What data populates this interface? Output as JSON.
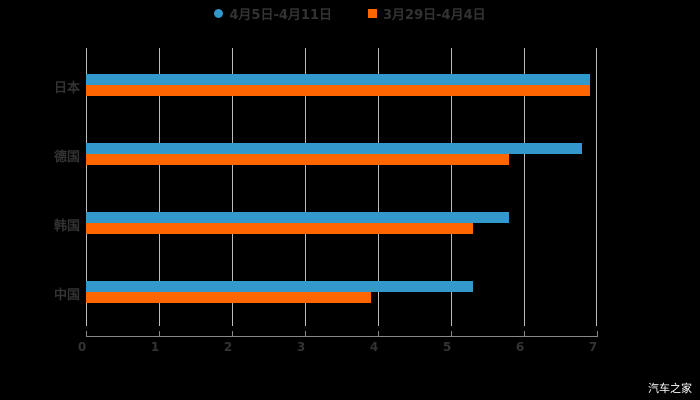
{
  "chart_data": {
    "type": "bar",
    "orientation": "horizontal",
    "title": "",
    "categories": [
      "日本",
      "德国",
      "韩国",
      "中国"
    ],
    "series": [
      {
        "name": "4月5日-4月11日",
        "color": "#3399cc",
        "values": [
          6.9,
          6.8,
          5.8,
          5.3
        ]
      },
      {
        "name": "3月29日-4月4日",
        "color": "#ff6600",
        "values": [
          6.9,
          5.8,
          5.3,
          3.9
        ]
      }
    ],
    "xlabel": "",
    "ylabel": "",
    "xlim": [
      0,
      7
    ],
    "x_ticks": [
      "0",
      "1",
      "2",
      "3",
      "4",
      "5",
      "6",
      "7"
    ],
    "grid": true,
    "legend_position": "top"
  },
  "legend": {
    "items": [
      {
        "label": "4月5日-4月11日",
        "color": "#3399cc",
        "shape": "circle"
      },
      {
        "label": "3月29日-4月4日",
        "color": "#ff6600",
        "shape": "square"
      }
    ]
  },
  "watermark": "汽车之家"
}
